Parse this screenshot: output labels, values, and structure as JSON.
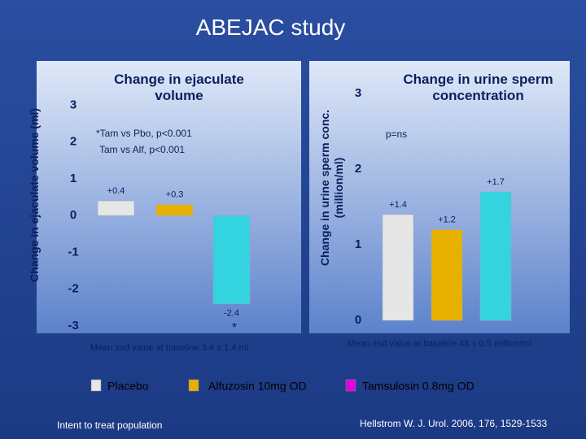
{
  "slide": {
    "title": "ABEJAC study",
    "footnote": "Intent to treat population",
    "reference": "Hellstrom W. J. Urol. 2006, 176, 1529-1533"
  },
  "chart_data": [
    {
      "type": "bar",
      "title": "Change in ejaculate volume",
      "y_label": "Change in ejaculate volume (ml)",
      "ylim": [
        -3.2,
        4.2
      ],
      "yticks": [
        -3,
        -2,
        -1,
        0,
        1,
        2,
        3
      ],
      "series": [
        {
          "name": "Placebo",
          "color": "#e6e6e6",
          "legend_color": "#e6e6e6",
          "values": [
            0.4
          ],
          "value_labels": [
            "+0.4"
          ]
        },
        {
          "name": "Alfuzosin 10mg OD",
          "color": "#e8b000",
          "legend_color": "#e8b000",
          "values": [
            0.3
          ],
          "value_labels": [
            "+0.3"
          ]
        },
        {
          "name": "Tamsulosin 0.8mg OD",
          "color": "#33d3df",
          "legend_color": "#e000e0",
          "values": [
            -2.4
          ],
          "value_labels": [
            "-2.4"
          ]
        }
      ],
      "annotations": [
        "*Tam vs Pbo, p<0.001",
        "Tam vs Alf, p<0.001",
        "*"
      ],
      "note": "Mean ±sd value at baseline 3.4 ± 1.4 ml"
    },
    {
      "type": "bar",
      "title": "Change in urine sperm concentration",
      "y_label": "Change in urine sperm conc. (million/ml)",
      "ylim": [
        -0.17,
        3.43
      ],
      "yticks": [
        0,
        1,
        2,
        3
      ],
      "values": [
        1.4,
        1.2,
        1.7
      ],
      "value_labels": [
        "+1.4",
        "+1.2",
        "+1.7"
      ],
      "colors": [
        "#e6e6e6",
        "#e8b000",
        "#33d3df"
      ],
      "annotations": [
        "p=ns"
      ],
      "note": "Mean ±sd value at baseline 48 ± 0.5 million/ml"
    }
  ]
}
